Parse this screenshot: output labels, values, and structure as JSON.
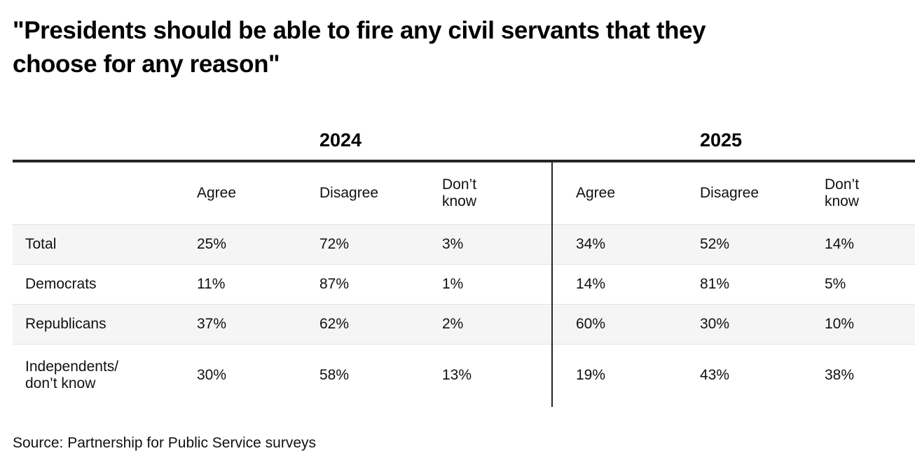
{
  "title_lines": [
    "\"Presidents should be able to fire any civil servants that they",
    "choose for any reason\""
  ],
  "year_headers": {
    "y2024": "2024",
    "y2025": "2025"
  },
  "col_headers": {
    "agree": "Agree",
    "disagree": "Disagree",
    "dont_know": [
      "Don’t",
      "know"
    ]
  },
  "rows": [
    {
      "label": "Total",
      "a24": "25%",
      "d24": "72%",
      "k24": "3%",
      "a25": "34%",
      "d25": "52%",
      "k25": "14%"
    },
    {
      "label": "Democrats",
      "a24": "11%",
      "d24": "87%",
      "k24": "1%",
      "a25": "14%",
      "d25": "81%",
      "k25": "5%"
    },
    {
      "label": "Republicans",
      "a24": "37%",
      "d24": "62%",
      "k24": "2%",
      "a25": "60%",
      "d25": "30%",
      "k25": "10%"
    },
    {
      "label": [
        "Independents/",
        "don’t know"
      ],
      "a24": "30%",
      "d24": "58%",
      "k24": "13%",
      "a25": "19%",
      "d25": "43%",
      "k25": "38%"
    }
  ],
  "source": "Source: Partnership for Public Service surveys",
  "colors": {
    "rule": "#262626",
    "divider": "#262626",
    "alt_row_bg": "#f5f5f5",
    "row_separator": "#e3e3e3",
    "text": "#111111"
  },
  "chart_data": {
    "type": "table",
    "title": "\"Presidents should be able to fire any civil servants that they choose for any reason\"",
    "column_groups": [
      "2024",
      "2025"
    ],
    "columns": [
      "Agree",
      "Disagree",
      "Don't know"
    ],
    "row_labels": [
      "Total",
      "Democrats",
      "Republicans",
      "Independents/don't know"
    ],
    "unit": "percent",
    "series": [
      {
        "name": "2024",
        "values": [
          [
            25,
            72,
            3
          ],
          [
            11,
            87,
            1
          ],
          [
            37,
            62,
            2
          ],
          [
            30,
            58,
            13
          ]
        ]
      },
      {
        "name": "2025",
        "values": [
          [
            34,
            52,
            14
          ],
          [
            14,
            81,
            5
          ],
          [
            60,
            30,
            10
          ],
          [
            19,
            43,
            38
          ]
        ]
      }
    ],
    "source": "Source: Partnership for Public Service surveys"
  }
}
